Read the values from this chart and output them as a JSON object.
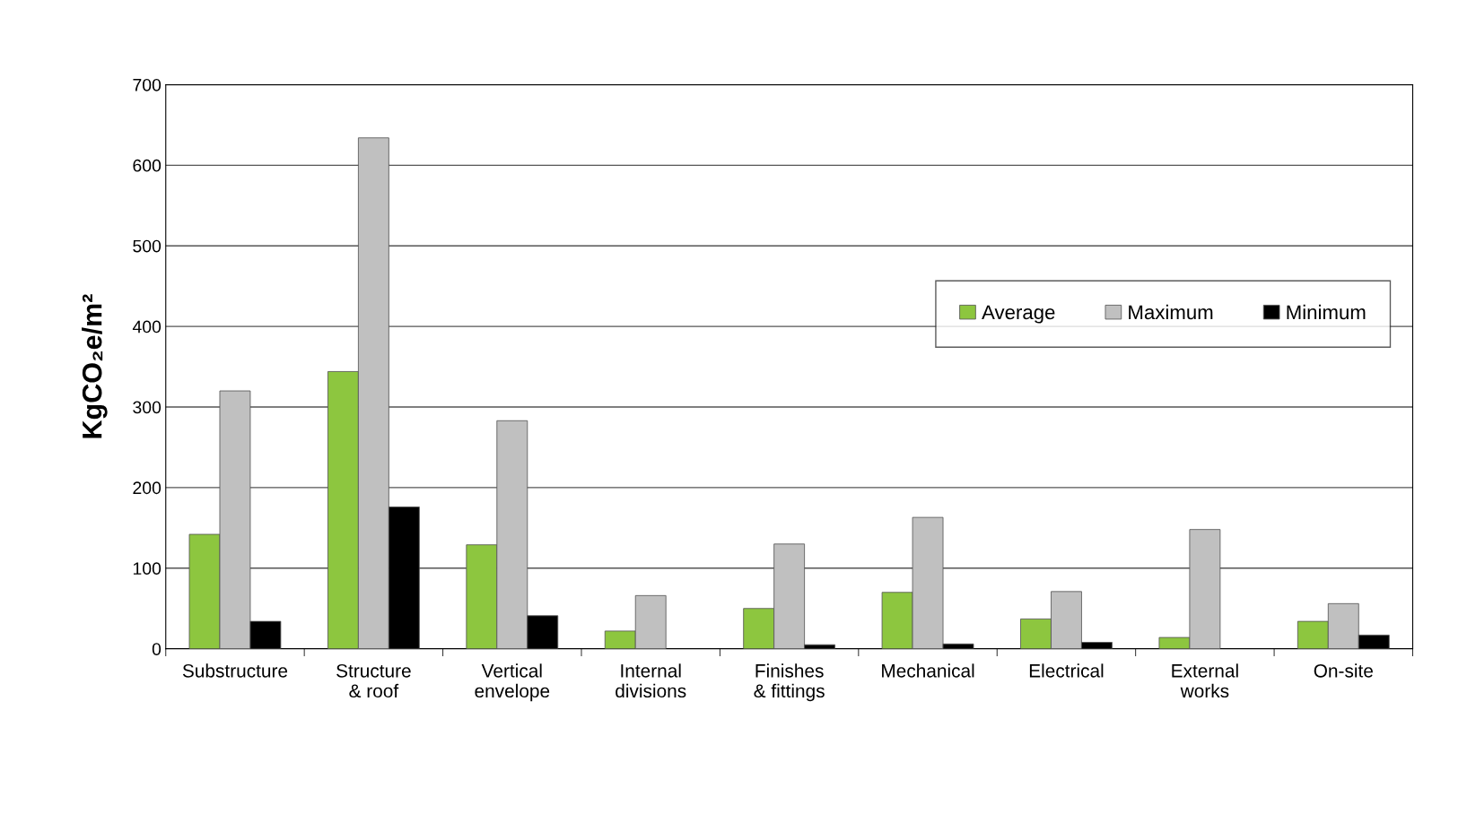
{
  "chart_data": {
    "type": "bar",
    "ylabel": "KgCO₂e/m²",
    "categories": [
      "Substructure",
      "Structure\n& roof",
      "Vertical\nenvelope",
      "Internal\ndivisions",
      "Finishes\n& fittings",
      "Mechanical",
      "Electrical",
      "External\nworks",
      "On-site"
    ],
    "series": [
      {
        "name": "Average",
        "color": "#8dc63f",
        "values": [
          142,
          344,
          129,
          22,
          50,
          70,
          37,
          14,
          34
        ]
      },
      {
        "name": "Maximum",
        "color": "#c0c0c0",
        "values": [
          320,
          634,
          283,
          66,
          130,
          163,
          71,
          148,
          56
        ]
      },
      {
        "name": "Minimum",
        "color": "#000000",
        "values": [
          34,
          176,
          41,
          null,
          5,
          6,
          8,
          null,
          17
        ]
      }
    ],
    "ylim": [
      0,
      700
    ],
    "yticks": [
      0,
      100,
      200,
      300,
      400,
      500,
      600,
      700
    ],
    "grid": "y",
    "legend": "top right"
  }
}
